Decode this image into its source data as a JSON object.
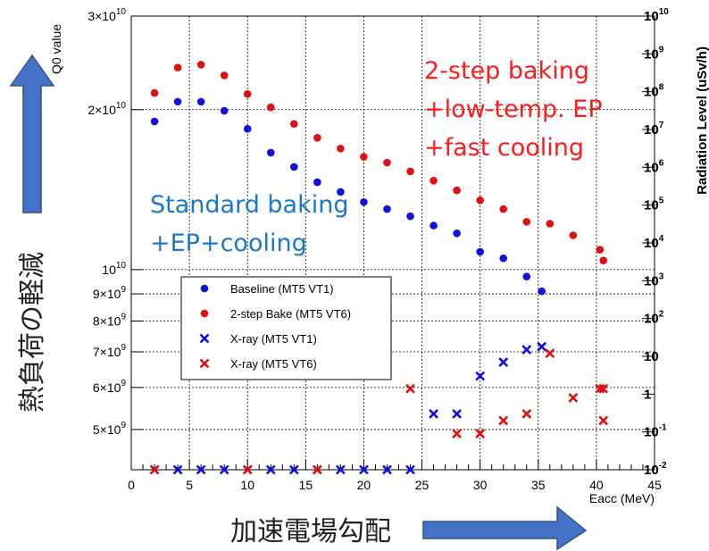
{
  "chart_data": {
    "type": "scatter",
    "xlabel": "Eacc (MeV)",
    "ylabel": "Q0 value",
    "y2label": "Radiation Level (uSv/h)",
    "xlim": [
      0,
      45
    ],
    "ylim": [
      4200000000,
      30000000000
    ],
    "y2lim": [
      0.01,
      10000000000
    ],
    "yscale": "log",
    "y2scale": "log",
    "grid": true,
    "legend_position": "center-left",
    "x_ticks": [
      "0",
      "5",
      "10",
      "15",
      "20",
      "25",
      "30",
      "35",
      "40",
      "45"
    ],
    "y_ticks": [
      {
        "value": 30000000000,
        "mantissa": "3",
        "exp": "10"
      },
      {
        "value": 20000000000,
        "mantissa": "2",
        "exp": "10"
      },
      {
        "value": 10000000000,
        "mantissa": "",
        "exp": "10"
      },
      {
        "value": 9000000000,
        "mantissa": "9",
        "exp": "9"
      },
      {
        "value": 8000000000,
        "mantissa": "8",
        "exp": "9"
      },
      {
        "value": 7000000000,
        "mantissa": "7",
        "exp": "9"
      },
      {
        "value": 6000000000,
        "mantissa": "6",
        "exp": "9"
      },
      {
        "value": 5000000000,
        "mantissa": "5",
        "exp": "9"
      }
    ],
    "y2_ticks": [
      {
        "value": 10000000000,
        "base": "10",
        "exp": "10"
      },
      {
        "value": 1000000000,
        "base": "10",
        "exp": "9"
      },
      {
        "value": 100000000,
        "base": "10",
        "exp": "8"
      },
      {
        "value": 10000000,
        "base": "10",
        "exp": "7"
      },
      {
        "value": 1000000,
        "base": "10",
        "exp": "6"
      },
      {
        "value": 100000,
        "base": "10",
        "exp": "5"
      },
      {
        "value": 10000,
        "base": "10",
        "exp": "4"
      },
      {
        "value": 1000,
        "base": "10",
        "exp": "3"
      },
      {
        "value": 100,
        "base": "10",
        "exp": "2"
      },
      {
        "value": 10,
        "base": "10",
        "exp": ""
      },
      {
        "value": 1,
        "base": "1",
        "exp": ""
      },
      {
        "value": 0.1,
        "base": "10",
        "exp": "-1"
      },
      {
        "value": 0.01,
        "base": "10",
        "exp": "-2"
      }
    ],
    "series": [
      {
        "name": "Baseline (MT5 VT1)",
        "marker": "circle",
        "color": "#1010e0",
        "axis": "left",
        "x": [
          2,
          4,
          6,
          8,
          10,
          12,
          14,
          16,
          18,
          20,
          22,
          24,
          26,
          28,
          30,
          32,
          34,
          35.3
        ],
        "y": [
          19000000000,
          20700000000,
          20700000000,
          19900000000,
          18400000000,
          16600000000,
          15600000000,
          14600000000,
          14000000000,
          13400000000,
          13000000000,
          12600000000,
          12100000000,
          11700000000,
          10800000000,
          10500000000,
          9700000000,
          9100000000
        ]
      },
      {
        "name": "2-step Bake (MT5 VT6)",
        "marker": "circle",
        "color": "#e01010",
        "axis": "left",
        "x": [
          2,
          4,
          6,
          8,
          10,
          12,
          14,
          16,
          18,
          20,
          22,
          24,
          26,
          28,
          30,
          32,
          34,
          36,
          38,
          40.3,
          40.6
        ],
        "y": [
          21500000000,
          24000000000,
          24300000000,
          23200000000,
          21400000000,
          20200000000,
          18800000000,
          17700000000,
          16900000000,
          16300000000,
          15900000000,
          15300000000,
          14700000000,
          14100000000,
          13500000000,
          13000000000,
          12300000000,
          12200000000,
          11600000000,
          10900000000,
          10400000000
        ]
      },
      {
        "name": "X-ray (MT5 VT1)",
        "marker": "x",
        "color": "#1010e0",
        "axis": "right",
        "x": [
          2,
          4,
          6,
          8,
          10,
          12,
          14,
          16,
          18,
          20,
          22,
          24,
          26,
          28,
          30,
          32,
          34,
          35.3
        ],
        "y": [
          0.01,
          0.01,
          0.01,
          0.01,
          0.01,
          0.01,
          0.01,
          0.01,
          0.01,
          0.01,
          0.01,
          0.01,
          0.3,
          0.3,
          3,
          7,
          15,
          18
        ]
      },
      {
        "name": "X-ray (MT5 VT6)",
        "marker": "x",
        "color": "#e01010",
        "axis": "right",
        "x": [
          2,
          10,
          16,
          24,
          28,
          30,
          32,
          34,
          36,
          38,
          40.3,
          40.6,
          40.6
        ],
        "y": [
          0.01,
          0.01,
          0.01,
          1.4,
          0.09,
          0.09,
          0.2,
          0.3,
          12,
          0.8,
          1.4,
          1.4,
          0.2
        ]
      }
    ]
  },
  "annotations": {
    "red_lines": [
      "2-step baking",
      "+low-temp. EP",
      "+fast cooling"
    ],
    "blue_lines": [
      "Standard baking",
      "+EP+cooling"
    ],
    "left_arrow_label": "熱負荷の軽減",
    "bottom_arrow_label": "加速電場勾配"
  },
  "colors": {
    "red_annotation": "#ff1a1a",
    "blue_annotation": "#1a78c8",
    "arrow_fill": "#4472c4",
    "arrow_stroke": "#2f528f"
  }
}
